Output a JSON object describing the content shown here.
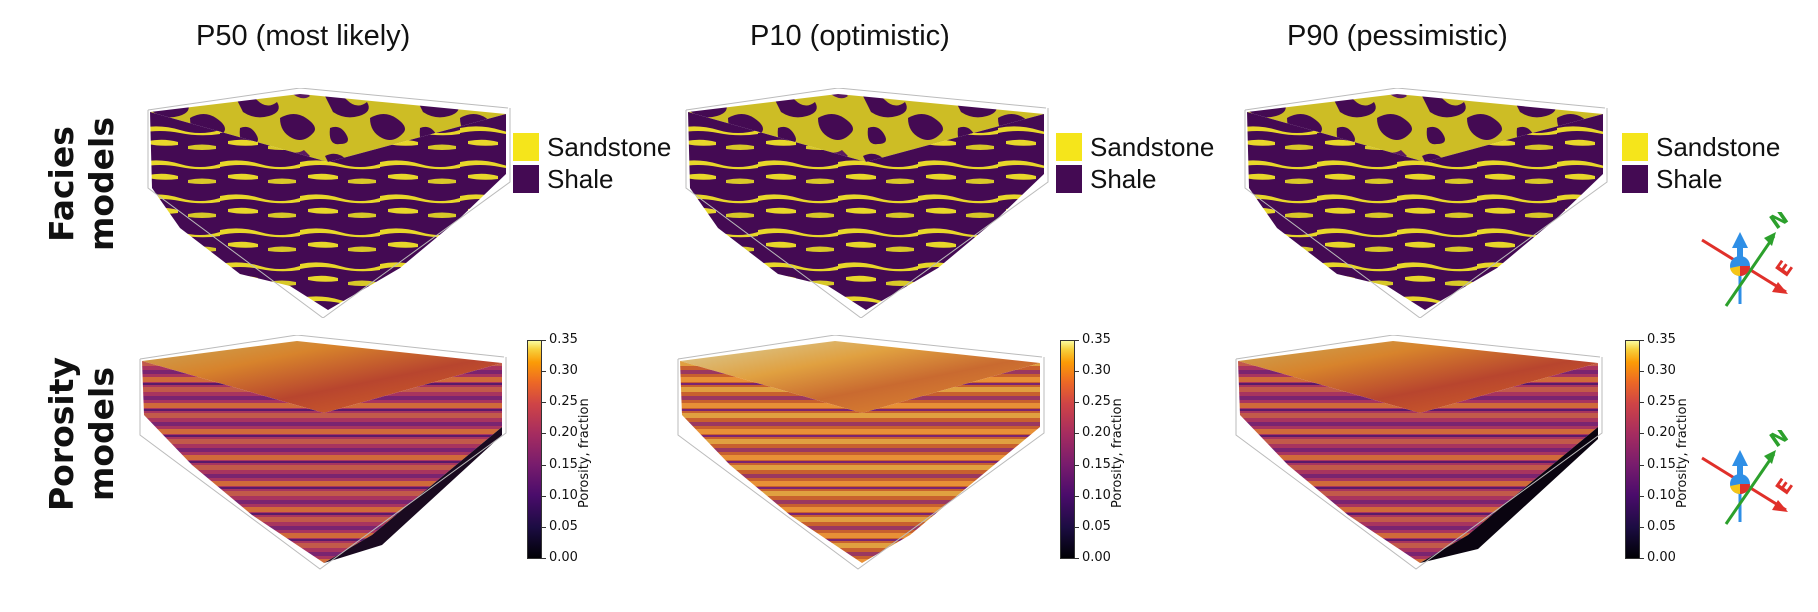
{
  "columns": [
    {
      "title": "P50 (most likely)"
    },
    {
      "title": "P10 (optimistic)"
    },
    {
      "title": "P90 (pessimistic)"
    }
  ],
  "rows": [
    {
      "label_line1": "Facies",
      "label_line2": "models"
    },
    {
      "label_line1": "Porosity",
      "label_line2": "models"
    }
  ],
  "facies_legend": [
    {
      "label": "Sandstone",
      "color": "#f5e51b"
    },
    {
      "label": "Shale",
      "color": "#440a53"
    }
  ],
  "porosity_colorbar": {
    "label": "Porosity, fraction",
    "ticks": [
      "0.35",
      "0.30",
      "0.25",
      "0.20",
      "0.15",
      "0.10",
      "0.05",
      "0.00"
    ],
    "min": 0.0,
    "max": 0.35,
    "colormap": "inferno"
  },
  "orientation_axes": {
    "north": "N",
    "east": "E"
  },
  "colors": {
    "sandstone": "#f5e51b",
    "shale": "#440a53",
    "north_arrow": "#2ca02c",
    "east_arrow": "#e0302a",
    "up_arrow": "#2f8fe6"
  }
}
